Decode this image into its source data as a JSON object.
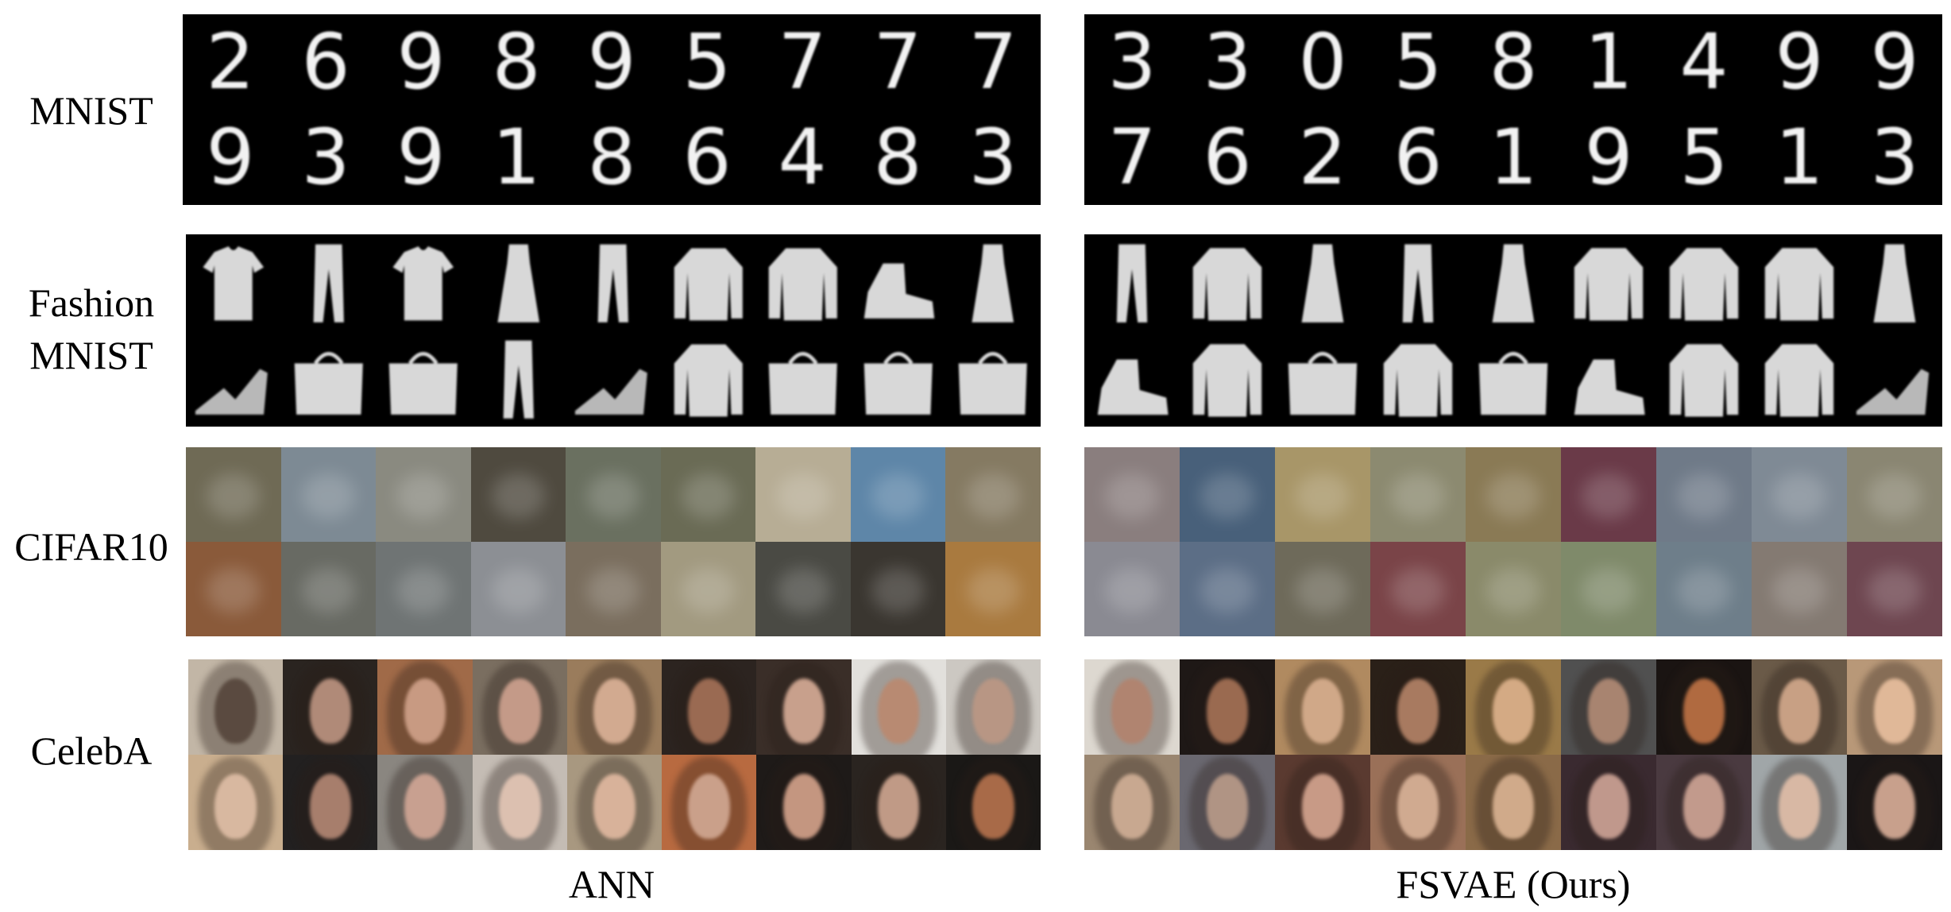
{
  "rows": [
    {
      "key": "mnist",
      "label": "MNIST"
    },
    {
      "key": "fashion",
      "label": "Fashion\nMNIST"
    },
    {
      "key": "cifar",
      "label": "CIFAR10"
    },
    {
      "key": "celeba",
      "label": "CelebA"
    }
  ],
  "columns": [
    "ANN",
    "FSVAE (Ours)"
  ],
  "mnist_digits": {
    "ann": [
      "2",
      "6",
      "9",
      "8",
      "9",
      "5",
      "7",
      "7",
      "7",
      "9",
      "3",
      "9",
      "1",
      "8",
      "6",
      "4",
      "8",
      "3"
    ],
    "fsvae": [
      "3",
      "3",
      "0",
      "5",
      "8",
      "1",
      "4",
      "9",
      "9",
      "7",
      "6",
      "2",
      "6",
      "1",
      "9",
      "5",
      "1",
      "3"
    ]
  },
  "fashion_items": {
    "ann": [
      "tshirt",
      "trouser",
      "tshirt",
      "dress",
      "trouser",
      "pullover",
      "pullover",
      "boot",
      "dress",
      "sandal",
      "bag",
      "bag",
      "trouser",
      "sandal",
      "pullover",
      "bag",
      "bag",
      "bag"
    ],
    "fsvae": [
      "trouser",
      "pullover",
      "dress",
      "trouser",
      "dress",
      "pullover",
      "pullover",
      "pullover",
      "dress",
      "boot",
      "pullover",
      "bag",
      "pullover",
      "bag",
      "boot",
      "pullover",
      "pullover",
      "sandal"
    ]
  },
  "cifar_colors": {
    "ann": [
      "#6f6a55",
      "#7d8a94",
      "#8a8a80",
      "#4f4a3f",
      "#6a7060",
      "#6a6b55",
      "#b7ad95",
      "#5e86a8",
      "#857a62",
      "#8a5a3a",
      "#686a63",
      "#6f7474",
      "#8c8f94",
      "#7a6e5e",
      "#a29a80",
      "#4a4a44",
      "#3a3630",
      "#a97a3f"
    ],
    "fsvae": [
      "#8a7e7e",
      "#48607a",
      "#a89668",
      "#8c8a70",
      "#8a7a55",
      "#6a3a48",
      "#6f7a88",
      "#7f8a95",
      "#8a8672",
      "#8a8a92",
      "#5c6e86",
      "#6e6a5a",
      "#7a4448",
      "#8a8a6a",
      "#7f8a6a",
      "#6e7e8a",
      "#847a72",
      "#6e4650"
    ]
  },
  "celeba_palettes": {
    "ann": [
      [
        "#c2b6a6",
        "#5a4a40"
      ],
      [
        "#2a2420",
        "#b08a78"
      ],
      [
        "#a06a48",
        "#c89a82"
      ],
      [
        "#7a6e60",
        "#c49a88"
      ],
      [
        "#9a7c5c",
        "#d2aa90"
      ],
      [
        "#2c2420",
        "#9a6a52"
      ],
      [
        "#3a2e28",
        "#c8a08c"
      ],
      [
        "#e2e0dc",
        "#b88a72"
      ],
      [
        "#ccc8c2",
        "#b89684"
      ],
      [
        "#c9ae8e",
        "#d8b8a0"
      ],
      [
        "#222020",
        "#a77e6c"
      ],
      [
        "#8a8680",
        "#c8a090"
      ],
      [
        "#c4bcb4",
        "#dcc0b0"
      ],
      [
        "#a89880",
        "#d8b29a"
      ],
      [
        "#b86a40",
        "#caa08a"
      ],
      [
        "#1e1a18",
        "#c49680"
      ],
      [
        "#2a2420",
        "#c09a86"
      ],
      [
        "#1a1816",
        "#a86a48"
      ]
    ],
    "fsvae": [
      [
        "#ddd8d0",
        "#b08470"
      ],
      [
        "#1e1816",
        "#9a6a50"
      ],
      [
        "#b08a60",
        "#d0a888"
      ],
      [
        "#2a2018",
        "#a87a60"
      ],
      [
        "#9a7a48",
        "#d4aa84"
      ],
      [
        "#505050",
        "#a88470"
      ],
      [
        "#1a1412",
        "#b06a40"
      ],
      [
        "#6a5a48",
        "#c8a084"
      ],
      [
        "#b89878",
        "#e0b898"
      ],
      [
        "#9a8670",
        "#c8a890"
      ],
      [
        "#6a6870",
        "#b09484"
      ],
      [
        "#5a3a30",
        "#c89a86"
      ],
      [
        "#9a7058",
        "#d0aa90"
      ],
      [
        "#8a6a48",
        "#d0aa8a"
      ],
      [
        "#3a2a30",
        "#c0988c"
      ],
      [
        "#4a3a40",
        "#c29a8c"
      ],
      [
        "#a0a6a8",
        "#d8b8a4"
      ],
      [
        "#1a1616",
        "#c8a08c"
      ]
    ]
  }
}
